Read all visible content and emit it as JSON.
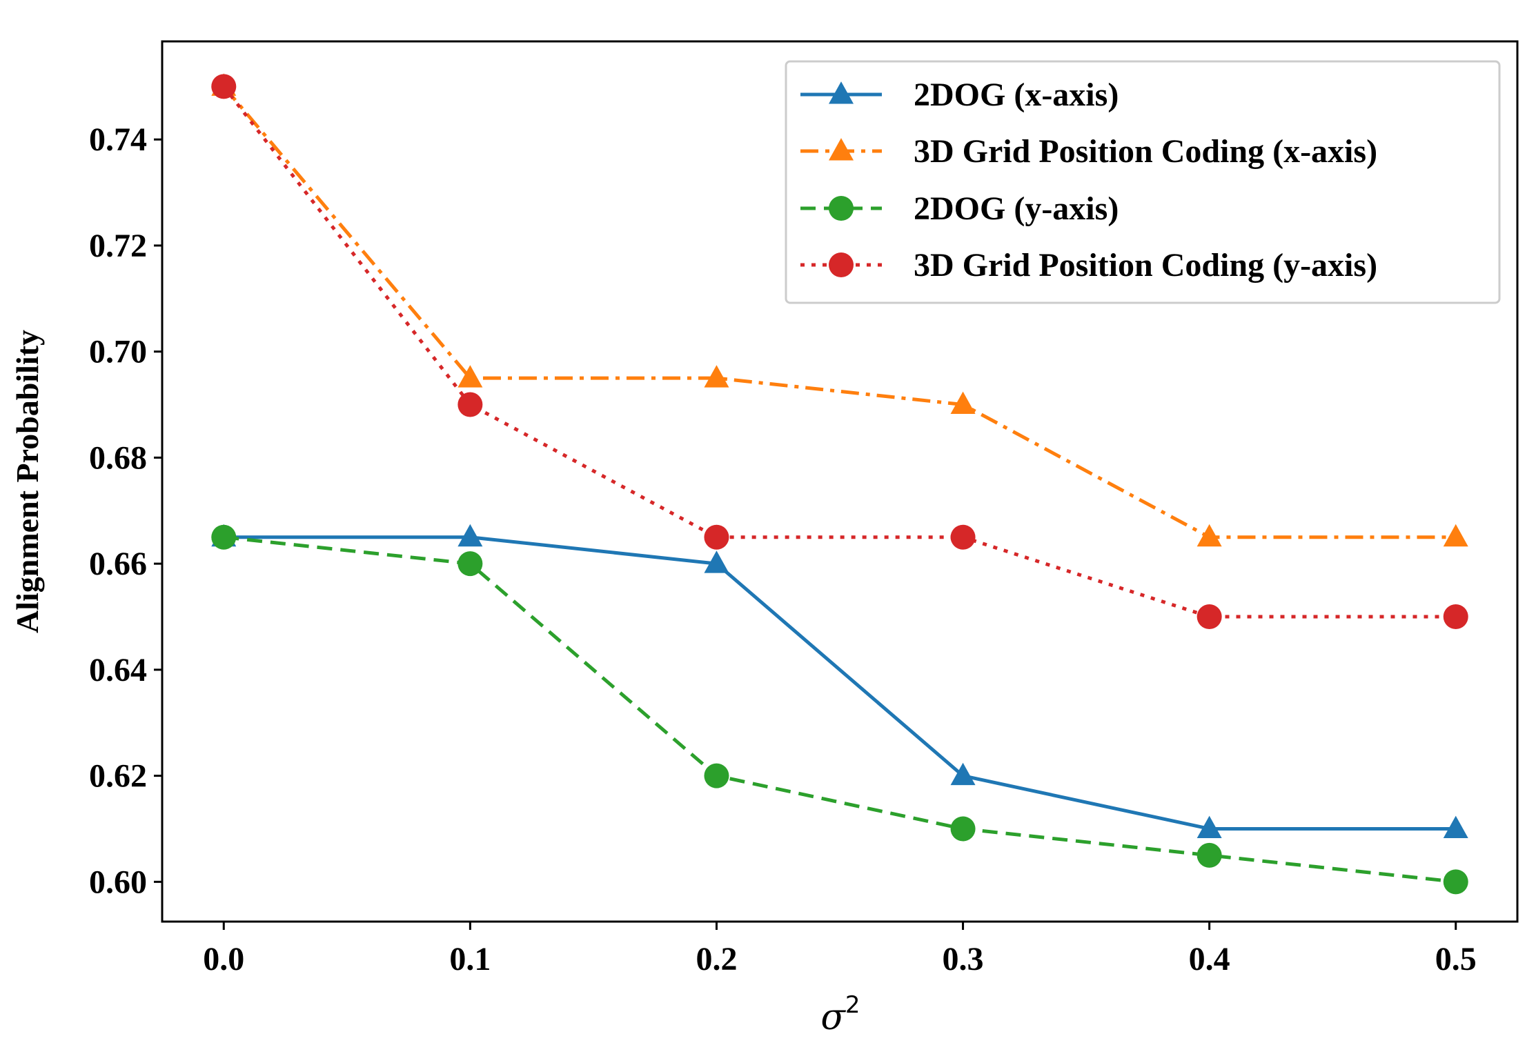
{
  "chart_data": {
    "type": "line",
    "title": "",
    "xlabel": "σ",
    "xlabel_superscript": "2",
    "ylabel": "Alignment Probability",
    "x": [
      0.0,
      0.1,
      0.2,
      0.3,
      0.4,
      0.5
    ],
    "xlim": [
      -0.025,
      0.525
    ],
    "ylim": [
      0.5925,
      0.7585
    ],
    "x_ticks": [
      0.0,
      0.1,
      0.2,
      0.3,
      0.4,
      0.5
    ],
    "x_tick_labels": [
      "0.0",
      "0.1",
      "0.2",
      "0.3",
      "0.4",
      "0.5"
    ],
    "y_ticks": [
      0.6,
      0.62,
      0.64,
      0.66,
      0.68,
      0.7,
      0.72,
      0.74
    ],
    "y_tick_labels": [
      "0.60",
      "0.62",
      "0.64",
      "0.66",
      "0.68",
      "0.70",
      "0.72",
      "0.74"
    ],
    "grid": false,
    "legend_position": "top-right",
    "series": [
      {
        "name": "2DOG (x-axis)",
        "values": [
          0.665,
          0.665,
          0.66,
          0.62,
          0.61,
          0.61
        ],
        "color": "#1f77b4",
        "line_style": "solid",
        "marker": "triangle"
      },
      {
        "name": "3D Grid Position Coding (x-axis)",
        "values": [
          0.75,
          0.695,
          0.695,
          0.69,
          0.665,
          0.665
        ],
        "color": "#ff7f0e",
        "line_style": "dashdot",
        "marker": "triangle"
      },
      {
        "name": "2DOG (y-axis)",
        "values": [
          0.665,
          0.66,
          0.62,
          0.61,
          0.605,
          0.6
        ],
        "color": "#2ca02c",
        "line_style": "dashed",
        "marker": "circle"
      },
      {
        "name": "3D Grid Position Coding (y-axis)",
        "values": [
          0.75,
          0.69,
          0.665,
          0.665,
          0.65,
          0.65
        ],
        "color": "#d62728",
        "line_style": "dotted",
        "marker": "circle"
      }
    ]
  }
}
